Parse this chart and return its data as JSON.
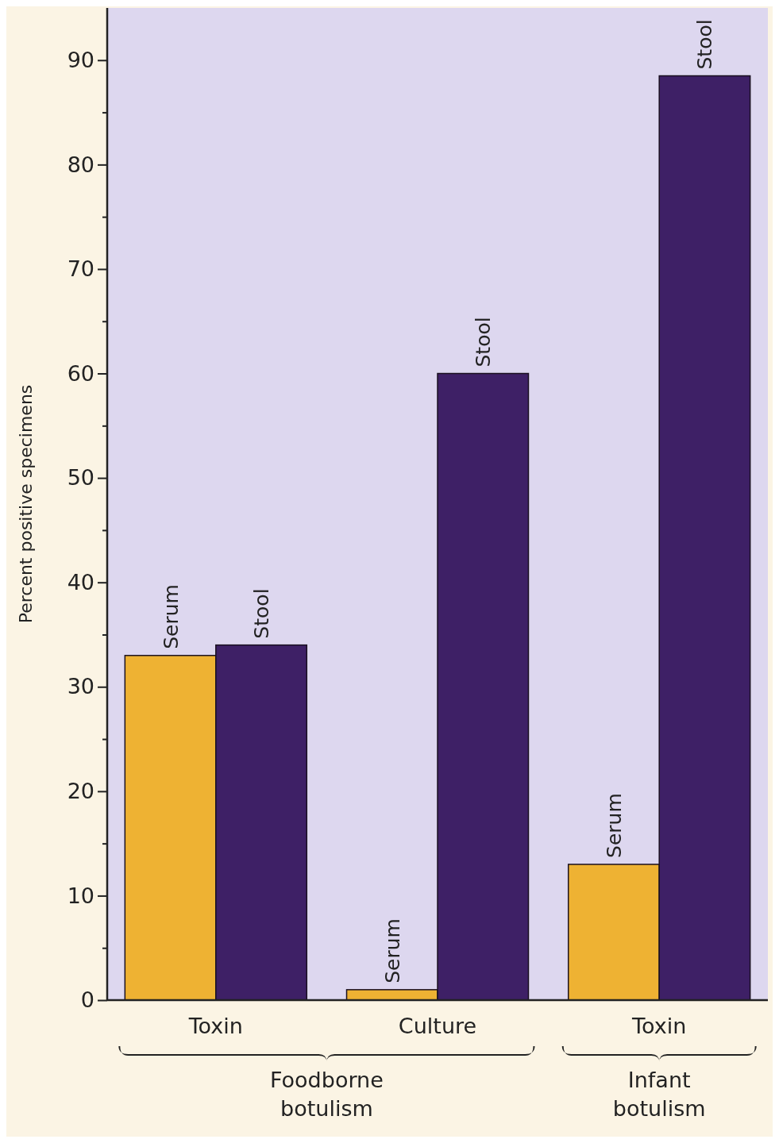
{
  "chart_data": {
    "type": "bar",
    "ylabel": "Percent positive specimens",
    "categories": [
      "Toxin",
      "Culture",
      "Toxin"
    ],
    "series": [
      {
        "name": "Serum",
        "color": "#eeb233",
        "values": [
          33,
          1,
          13
        ]
      },
      {
        "name": "Stool",
        "color": "#3e2066",
        "values": [
          34,
          60,
          88.5
        ]
      }
    ],
    "ylim": [
      0,
      95
    ],
    "yticks": [
      0,
      {
        "value": 5,
        "label": null
      },
      10,
      {
        "value": 15,
        "label": null
      },
      20,
      {
        "value": 25,
        "label": null
      },
      30,
      {
        "value": 35,
        "label": null
      },
      40,
      {
        "value": 45,
        "label": null
      },
      50,
      {
        "value": 55,
        "label": null
      },
      60,
      {
        "value": 65,
        "label": null
      },
      70,
      {
        "value": 75,
        "label": null
      },
      80,
      {
        "value": 85,
        "label": null
      },
      90
    ],
    "grid": false,
    "annotations": [
      "Foodborne botulism",
      "Infant botulism"
    ]
  }
}
